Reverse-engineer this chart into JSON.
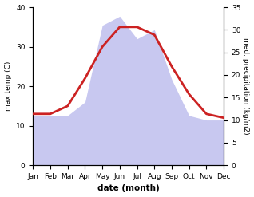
{
  "months": [
    "Jan",
    "Feb",
    "Mar",
    "Apr",
    "May",
    "Jun",
    "Jul",
    "Aug",
    "Sep",
    "Oct",
    "Nov",
    "Dec"
  ],
  "temperature": [
    13,
    13,
    15,
    22,
    30,
    35,
    35,
    33,
    25,
    18,
    13,
    12
  ],
  "precipitation": [
    11,
    11,
    11,
    14,
    31,
    33,
    28,
    30,
    19,
    11,
    10,
    10
  ],
  "temp_color": "#cc2222",
  "precip_fill_color": "#c8c8f0",
  "xlabel": "date (month)",
  "ylabel_left": "max temp (C)",
  "ylabel_right": "med. precipitation (kg/m2)",
  "ylim_left": [
    0,
    40
  ],
  "ylim_right": [
    0,
    35
  ],
  "yticks_left": [
    0,
    10,
    20,
    30,
    40
  ],
  "yticks_right": [
    0,
    5,
    10,
    15,
    20,
    25,
    30,
    35
  ],
  "background_color": "#ffffff",
  "temp_linewidth": 2.0
}
